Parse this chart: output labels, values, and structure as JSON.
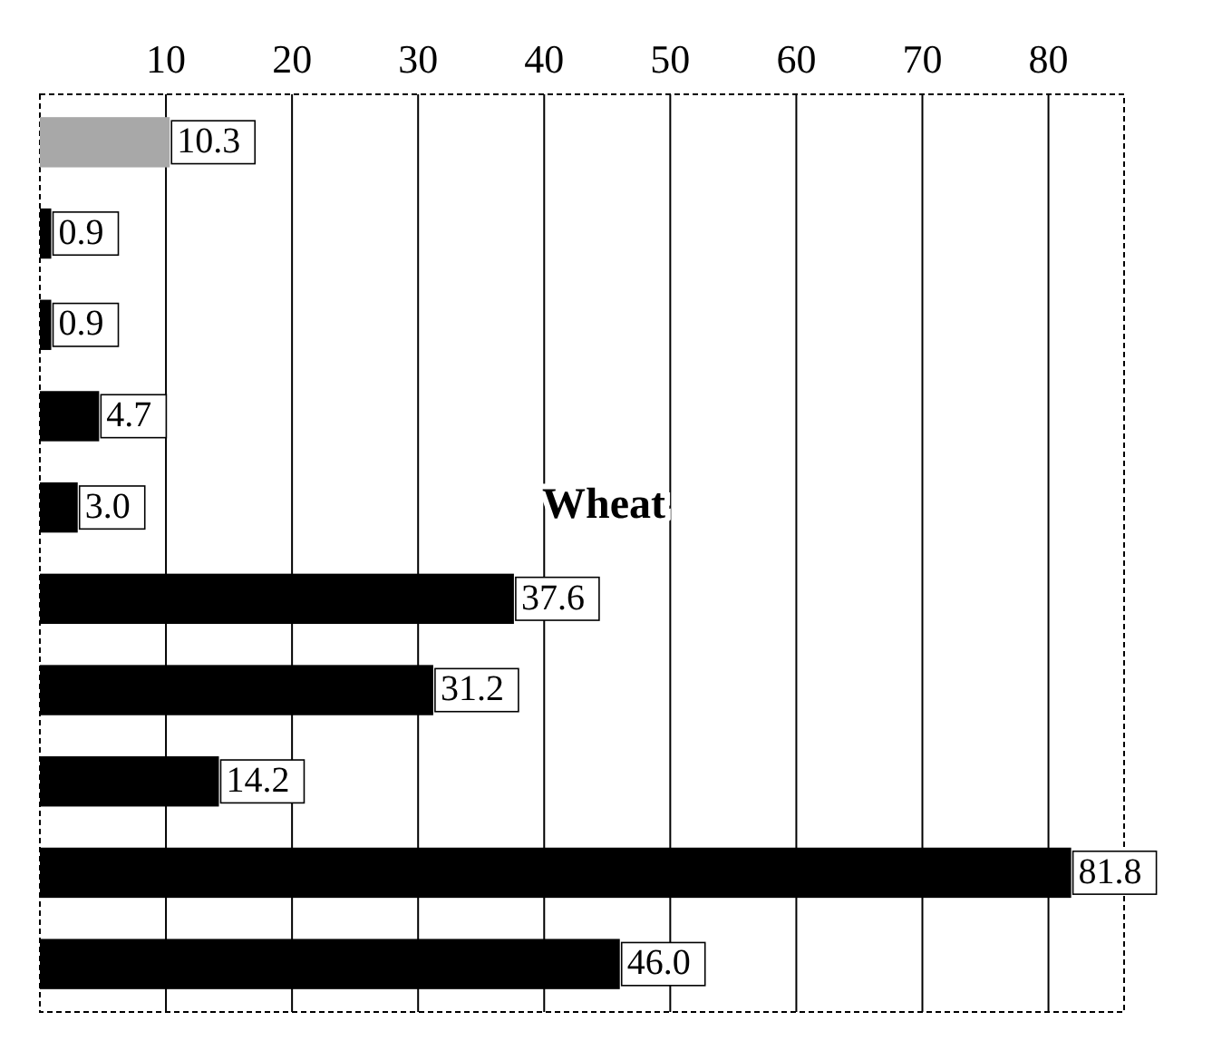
{
  "chart_data": {
    "type": "bar",
    "orientation": "horizontal",
    "categories": [
      null,
      null,
      null,
      null,
      null,
      null,
      null,
      null,
      null,
      null
    ],
    "values": [
      10.3,
      0.9,
      0.9,
      4.7,
      3.0,
      37.6,
      31.2,
      14.2,
      81.8,
      46.0
    ],
    "value_labels": [
      "10.3",
      "0.9",
      "0.9",
      "4.7",
      "3.0",
      "37.6",
      "31.2",
      "14.2",
      "81.8",
      "46.0"
    ],
    "colors": [
      "#a8a8a8",
      "#000000",
      "#000000",
      "#000000",
      "#000000",
      "#000000",
      "#000000",
      "#000000",
      "#000000",
      "#000000"
    ],
    "xlim": [
      0,
      86
    ],
    "xticks": [
      10,
      20,
      30,
      40,
      50,
      60,
      70,
      80
    ],
    "grid": "x",
    "tick_labels": "x",
    "annotations": [
      "Wheat"
    ]
  }
}
